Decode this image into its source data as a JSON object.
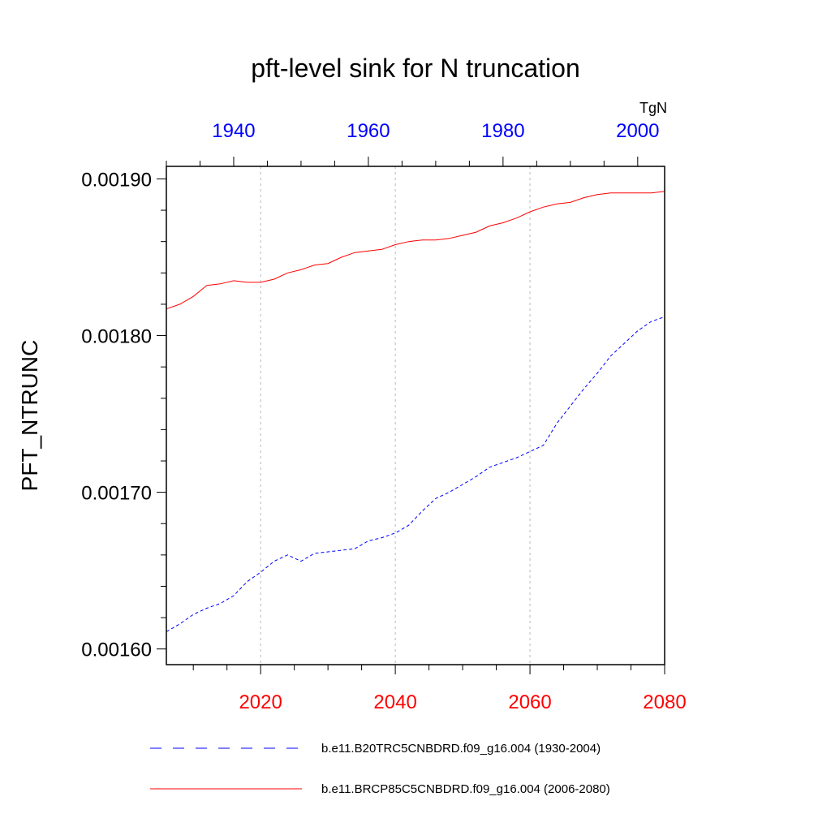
{
  "chart_data": {
    "type": "line",
    "title": "pft-level sink for N truncation",
    "ylabel": "PFT_NTRUNC",
    "units": "TgN",
    "ylim": [
      0.00159,
      0.001908
    ],
    "y_ticks": [
      0.0016,
      0.0017,
      0.0018,
      0.0019
    ],
    "y_tick_labels": [
      "0.00160",
      "0.00170",
      "0.00180",
      "0.00190"
    ],
    "grid": "vertical dotted at bottom-axis major ticks",
    "legend_position": "bottom",
    "bottom_axis": {
      "color": "#ff0000",
      "range": [
        2006,
        2080
      ],
      "ticks": [
        2020,
        2040,
        2060,
        2080
      ],
      "tick_labels": [
        "2020",
        "2040",
        "2060",
        "2080"
      ]
    },
    "top_axis": {
      "color": "#0000ff",
      "range": [
        1930,
        2004
      ],
      "ticks": [
        1940,
        1960,
        1980,
        2000
      ],
      "tick_labels": [
        "1940",
        "1960",
        "1980",
        "2000"
      ]
    },
    "series": [
      {
        "name": "b.e11.B20TRC5CNBDRD.f09_g16.004 (1930-2004)",
        "color": "#0000ff",
        "style": "dashed",
        "axis": "top",
        "x": [
          1930,
          1932,
          1934,
          1936,
          1938,
          1940,
          1942,
          1944,
          1946,
          1948,
          1950,
          1952,
          1954,
          1956,
          1958,
          1960,
          1962,
          1964,
          1966,
          1968,
          1970,
          1972,
          1974,
          1976,
          1978,
          1980,
          1982,
          1984,
          1986,
          1988,
          1990,
          1992,
          1994,
          1996,
          1998,
          2000,
          2002,
          2004
        ],
        "y": [
          0.001611,
          0.001616,
          0.001622,
          0.001626,
          0.001629,
          0.001634,
          0.001643,
          0.001649,
          0.001656,
          0.00166,
          0.001656,
          0.001661,
          0.001662,
          0.001663,
          0.001664,
          0.001669,
          0.001671,
          0.001674,
          0.001679,
          0.001688,
          0.001696,
          0.0017,
          0.001705,
          0.00171,
          0.001716,
          0.001719,
          0.001722,
          0.001726,
          0.00173,
          0.001744,
          0.001755,
          0.001766,
          0.001776,
          0.001787,
          0.001795,
          0.001803,
          0.001809,
          0.001812
        ]
      },
      {
        "name": "b.e11.BRCP85C5CNBDRD.f09_g16.004 (2006-2080)",
        "color": "#ff0000",
        "style": "solid",
        "axis": "bottom",
        "x": [
          2006,
          2008,
          2010,
          2012,
          2014,
          2016,
          2018,
          2020,
          2022,
          2024,
          2026,
          2028,
          2030,
          2032,
          2034,
          2036,
          2038,
          2040,
          2042,
          2044,
          2046,
          2048,
          2050,
          2052,
          2054,
          2056,
          2058,
          2060,
          2062,
          2064,
          2066,
          2068,
          2070,
          2072,
          2074,
          2076,
          2078,
          2080
        ],
        "y": [
          0.001817,
          0.00182,
          0.001825,
          0.001832,
          0.001833,
          0.001835,
          0.001834,
          0.001834,
          0.001836,
          0.00184,
          0.001842,
          0.001845,
          0.001846,
          0.00185,
          0.001853,
          0.001854,
          0.001855,
          0.001858,
          0.00186,
          0.001861,
          0.001861,
          0.001862,
          0.001864,
          0.001866,
          0.00187,
          0.001872,
          0.001875,
          0.001879,
          0.001882,
          0.001884,
          0.001885,
          0.001888,
          0.00189,
          0.001891,
          0.001891,
          0.001891,
          0.001891,
          0.001892
        ]
      }
    ]
  }
}
